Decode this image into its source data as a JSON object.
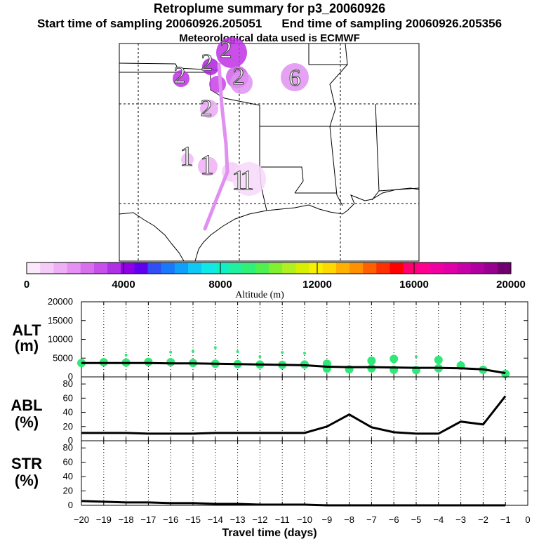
{
  "header": {
    "title": "Retroplume summary for p3_20060926",
    "start_label": "Start time of sampling 20060926.205051",
    "end_label": "End time of sampling 20060926.205356",
    "met_label": "Meteorological data used is ECMWF"
  },
  "map": {
    "plume_labels": [
      {
        "text": "2",
        "color": "#c020e0"
      },
      {
        "text": "2",
        "color": "#c020e0"
      },
      {
        "text": "2",
        "color": "#c020e0"
      },
      {
        "text": "2",
        "color": "#d050e8"
      },
      {
        "text": "2",
        "color": "#e090f0"
      },
      {
        "text": "6",
        "color": "#d060e8"
      },
      {
        "text": "1",
        "color": "#e8a0f4"
      },
      {
        "text": "1",
        "color": "#e8a0f4"
      },
      {
        "text": "1",
        "color": "#f0c0f8"
      },
      {
        "text": "1",
        "color": "#f0c0f8"
      }
    ],
    "track_color": "#e090f0"
  },
  "colorbar": {
    "label": "Altitude (m)",
    "tick_labels": [
      "0",
      "4000",
      "8000",
      "12000",
      "16000",
      "20000"
    ],
    "colors": [
      "#fbe8fb",
      "#f5ccf8",
      "#eeb0f5",
      "#e590f2",
      "#d870ee",
      "#c850ea",
      "#b030e6",
      "#9000e4",
      "#6000ee",
      "#3050f5",
      "#1a78fa",
      "#10a0fa",
      "#10c8f5",
      "#10e8e8",
      "#10f0c8",
      "#20f0a0",
      "#30f078",
      "#50f050",
      "#80f030",
      "#b0f020",
      "#d8f000",
      "#f8f000",
      "#ffd800",
      "#ffb000",
      "#ff9000",
      "#ff6000",
      "#ff3000",
      "#ff0000",
      "#ff0070",
      "#ff0090",
      "#f000a0",
      "#e000a8",
      "#c800a8",
      "#b000a0",
      "#980090",
      "#700070"
    ]
  },
  "chart_data": [
    {
      "type": "line",
      "name": "ALT",
      "ylabel": "ALT (m)",
      "ylim": [
        0,
        20000
      ],
      "yticks": [
        0,
        5000,
        10000,
        15000,
        20000
      ],
      "x": [
        -20,
        -19,
        -18,
        -17,
        -16,
        -15,
        -14,
        -13,
        -12,
        -11,
        -10,
        -9,
        -8,
        -7,
        -6,
        -5,
        -4,
        -3,
        -2,
        -1
      ],
      "values": [
        3700,
        3700,
        3700,
        3700,
        3600,
        3600,
        3500,
        3400,
        3300,
        3200,
        3100,
        2700,
        2600,
        2600,
        2500,
        2400,
        2400,
        2300,
        2000,
        1000
      ],
      "scatter": [
        {
          "x": -20,
          "y": 3700
        },
        {
          "x": -19,
          "y": 3900
        },
        {
          "x": -18,
          "y": 3800
        },
        {
          "x": -18,
          "y": 5800
        },
        {
          "x": -17,
          "y": 4000
        },
        {
          "x": -16,
          "y": 3900
        },
        {
          "x": -16,
          "y": 6600
        },
        {
          "x": -15,
          "y": 3700
        },
        {
          "x": -15,
          "y": 6800
        },
        {
          "x": -14,
          "y": 3500
        },
        {
          "x": -14,
          "y": 7800
        },
        {
          "x": -13,
          "y": 3400
        },
        {
          "x": -13,
          "y": 6700
        },
        {
          "x": -12,
          "y": 3300
        },
        {
          "x": -12,
          "y": 5400
        },
        {
          "x": -11,
          "y": 3200
        },
        {
          "x": -11,
          "y": 6500
        },
        {
          "x": -10,
          "y": 3300
        },
        {
          "x": -10,
          "y": 6300
        },
        {
          "x": -9,
          "y": 2200
        },
        {
          "x": -9,
          "y": 3500
        },
        {
          "x": -8,
          "y": 2000
        },
        {
          "x": -7,
          "y": 2300
        },
        {
          "x": -7,
          "y": 4300
        },
        {
          "x": -6,
          "y": 1900
        },
        {
          "x": -6,
          "y": 4800
        },
        {
          "x": -5,
          "y": 1800
        },
        {
          "x": -5,
          "y": 5400
        },
        {
          "x": -4,
          "y": 2300
        },
        {
          "x": -4,
          "y": 4500
        },
        {
          "x": -3,
          "y": 3000
        },
        {
          "x": -2,
          "y": 1900
        },
        {
          "x": -1,
          "y": 800
        }
      ],
      "scatter_color": "#30e878"
    },
    {
      "type": "line",
      "name": "ABL",
      "ylabel": "ABL (%)",
      "ylim": [
        0,
        90
      ],
      "yticks": [
        0,
        20,
        40,
        60,
        80
      ],
      "x": [
        -20,
        -19,
        -18,
        -17,
        -16,
        -15,
        -14,
        -13,
        -12,
        -11,
        -10,
        -9,
        -8,
        -7,
        -6,
        -5,
        -4,
        -3,
        -2,
        -1
      ],
      "values": [
        11,
        11,
        11,
        10,
        10,
        10,
        11,
        11,
        11,
        11,
        11,
        20,
        37,
        19,
        12,
        10,
        10,
        27,
        23,
        63
      ]
    },
    {
      "type": "line",
      "name": "STR",
      "ylabel": "STR (%)",
      "ylim": [
        0,
        90
      ],
      "yticks": [
        0,
        20,
        40,
        60,
        80
      ],
      "x": [
        -20,
        -19,
        -18,
        -17,
        -16,
        -15,
        -14,
        -13,
        -12,
        -11,
        -10,
        -9,
        -8,
        -7,
        -6,
        -5,
        -4,
        -3,
        -2,
        -1
      ],
      "values": [
        6,
        5,
        4,
        4,
        3,
        3,
        2,
        2,
        1,
        1,
        1,
        0,
        0,
        0,
        0,
        0,
        0,
        0,
        0,
        0
      ]
    }
  ],
  "xaxis": {
    "xlabel": "Travel time (days)",
    "ticks": [
      -20,
      -19,
      -18,
      -17,
      -16,
      -15,
      -14,
      -13,
      -12,
      -11,
      -10,
      -9,
      -8,
      -7,
      -6,
      -5,
      -4,
      -3,
      -2,
      -1,
      0
    ],
    "xlim": [
      -20,
      0
    ]
  }
}
